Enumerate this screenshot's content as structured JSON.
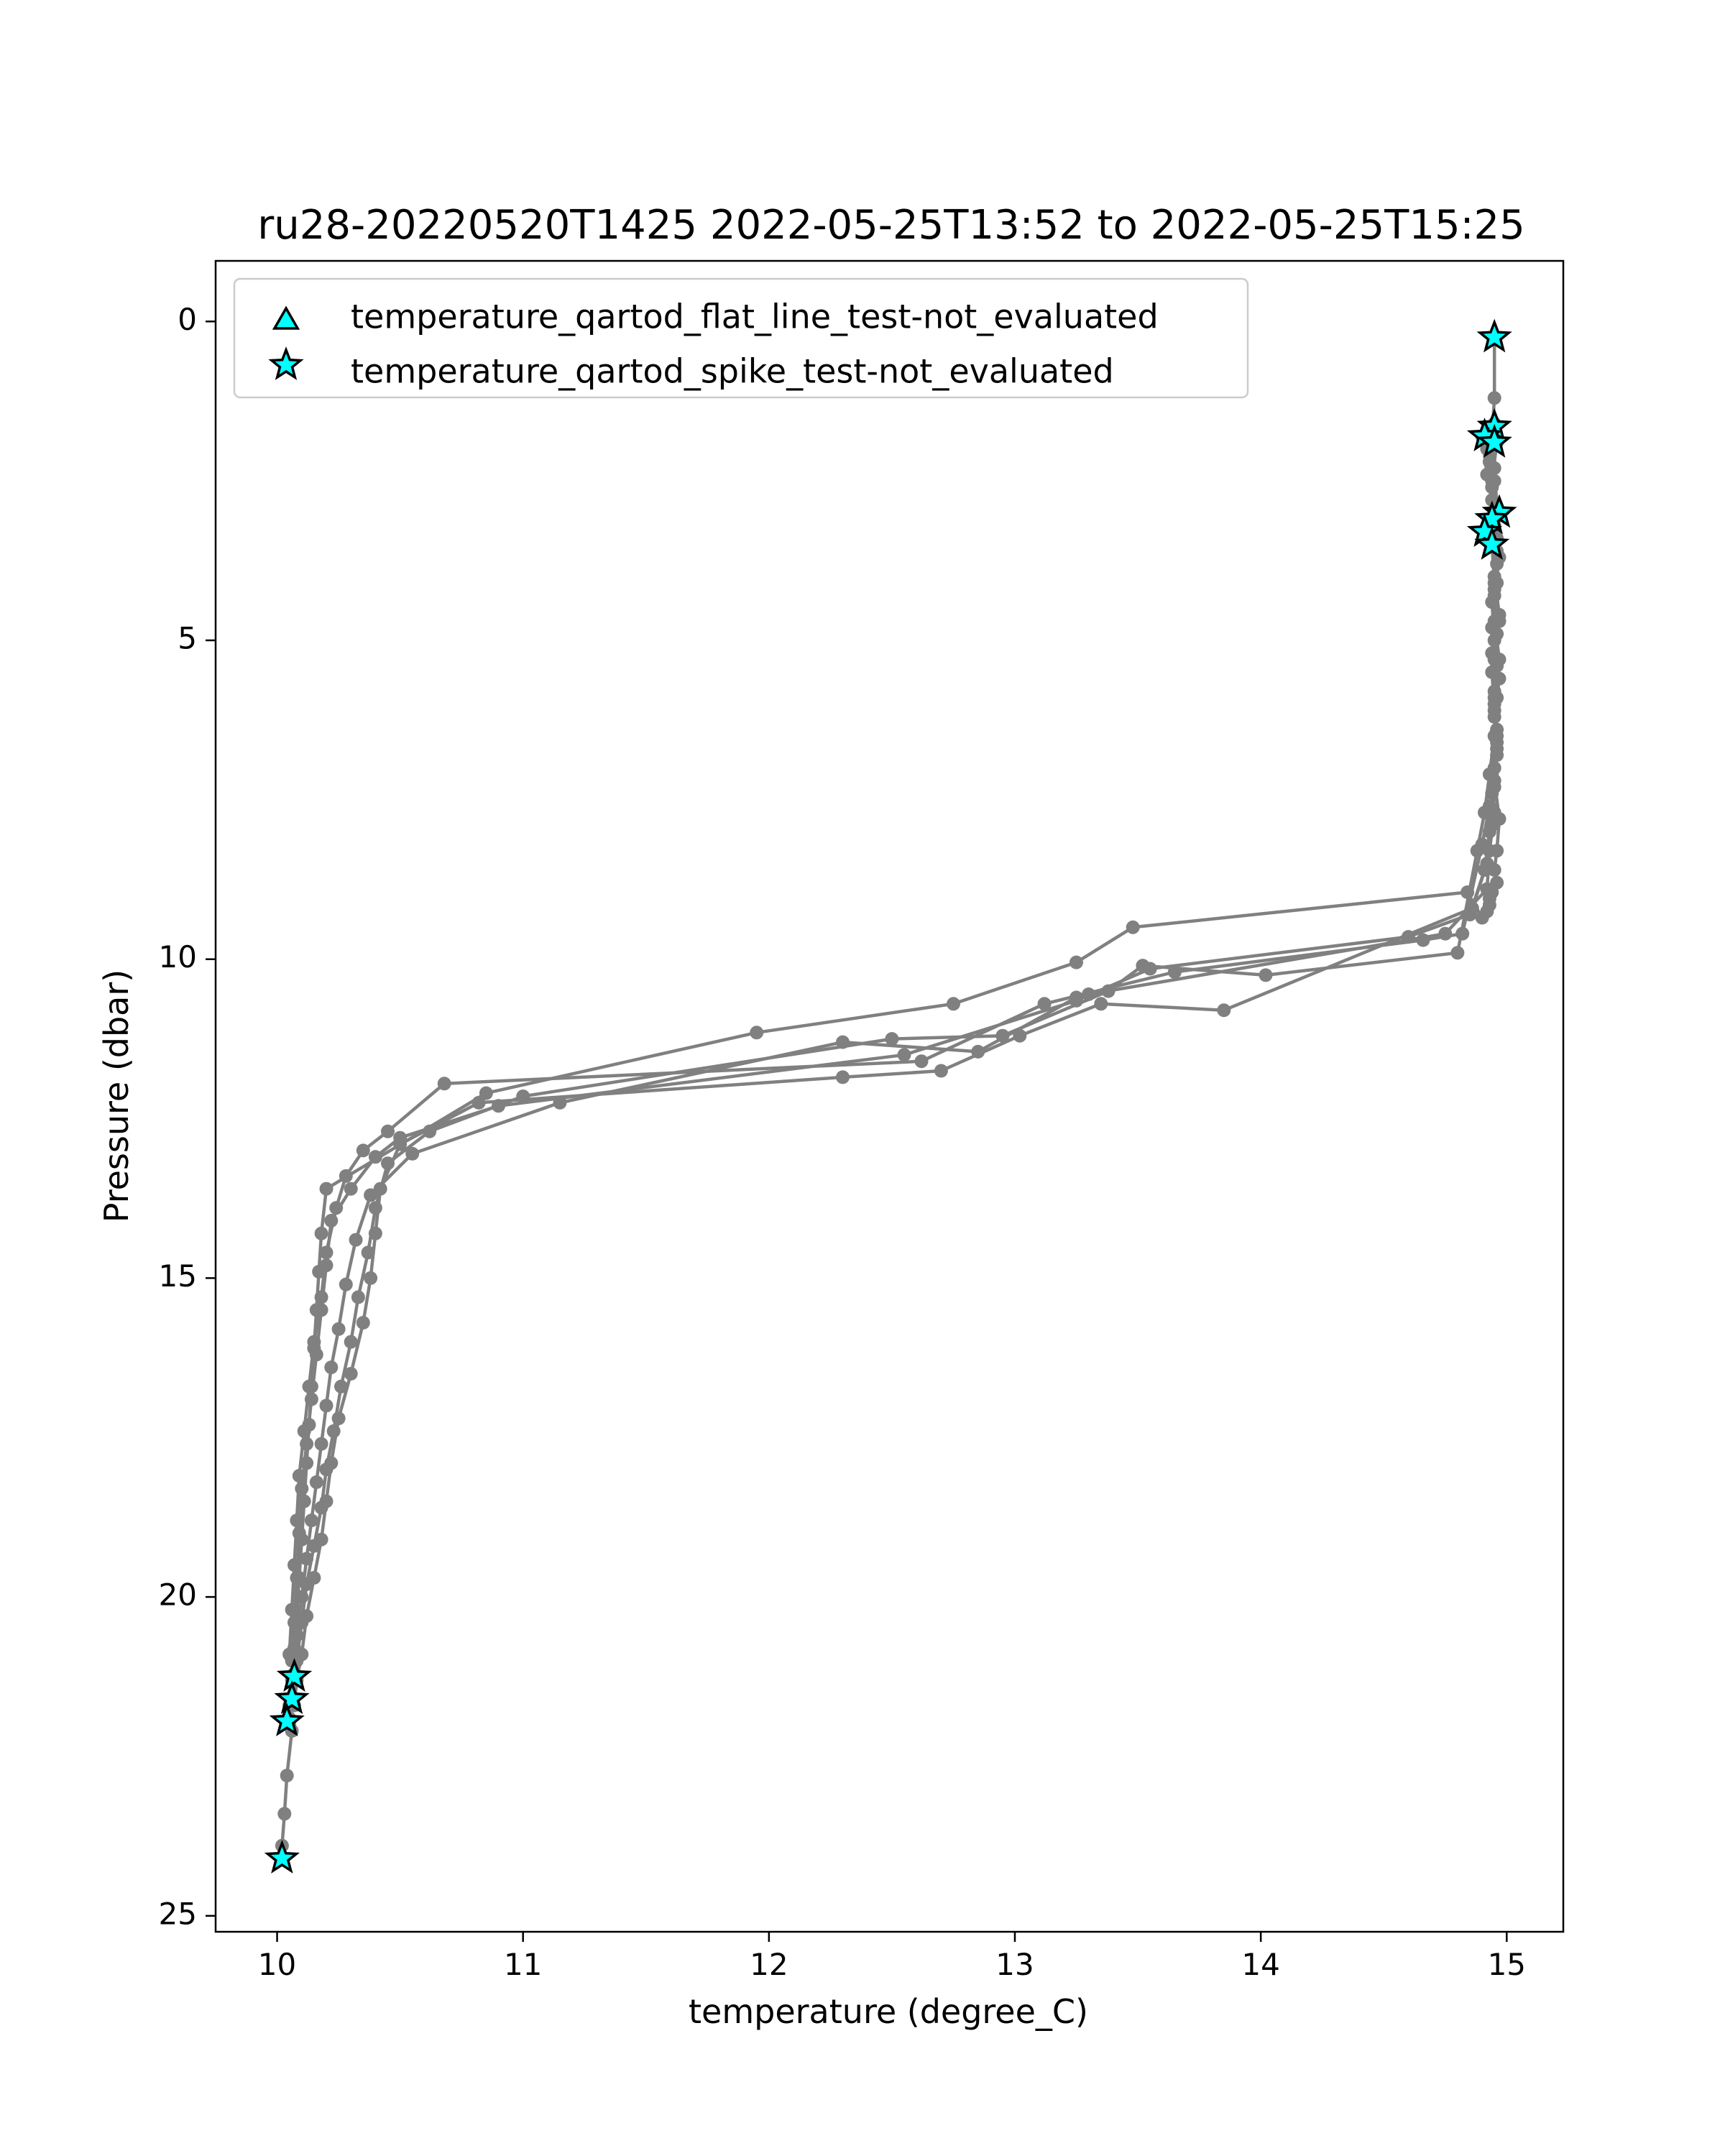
{
  "chart_data": {
    "type": "line",
    "title": "ru28-20220520T1425 2022-05-25T13:52 to 2022-05-25T15:25",
    "xlabel": "temperature (degree_C)",
    "ylabel": "Pressure (dbar)",
    "xlim": [
      9.75,
      15.23
    ],
    "ylim": [
      25.25,
      -0.95
    ],
    "y_inverted": true,
    "x_ticks": [
      10,
      11,
      12,
      13,
      14,
      15
    ],
    "y_ticks": [
      0,
      5,
      10,
      15,
      20,
      25
    ],
    "grid": false,
    "legend_position": "upper-left",
    "colors": {
      "profile": "#808080",
      "flag_fill": "#00ffff",
      "flag_edge": "#000000"
    },
    "legend": [
      {
        "marker": "triangle",
        "label": "temperature_qartod_flat_line_test-not_evaluated"
      },
      {
        "marker": "star",
        "label": "temperature_qartod_spike_test-not_evaluated"
      }
    ],
    "series": [
      {
        "x": [
          14.95,
          14.95,
          14.94,
          14.95,
          14.93,
          14.96,
          14.95,
          14.94,
          14.96,
          14.95,
          14.96,
          14.95,
          14.97,
          14.96,
          14.95,
          14.96,
          14.94,
          14.93,
          14.93,
          14.92,
          14.9,
          14.84,
          13.48,
          13.25,
          12.75,
          11.95,
          10.85,
          10.2,
          10.18,
          10.17,
          10.16,
          10.15,
          10.14,
          10.13,
          10.12,
          10.11,
          10.1,
          10.09,
          10.08,
          10.07,
          10.06,
          10.05,
          10.05,
          10.06,
          10.04,
          10.03,
          10.02,
          10.02
        ],
        "y": [
          0.25,
          1.2,
          1.8,
          2.5,
          3.1,
          3.6,
          4.2,
          4.8,
          5.4,
          6.0,
          6.6,
          7.2,
          7.8,
          8.3,
          8.6,
          8.8,
          8.95,
          9.05,
          9.15,
          9.25,
          9.35,
          8.95,
          9.5,
          10.05,
          10.7,
          11.15,
          12.1,
          13.6,
          14.3,
          14.9,
          15.5,
          16.1,
          16.7,
          17.3,
          17.9,
          18.5,
          19.1,
          19.7,
          20.3,
          20.8,
          21.3,
          21.7,
          22.0,
          22.1,
          22.8,
          23.4,
          23.9,
          24.1
        ]
      },
      {
        "x": [
          14.9,
          14.92,
          14.95,
          14.94,
          14.96,
          14.95,
          14.97,
          14.95,
          14.96,
          14.94,
          14.95,
          14.93,
          14.92,
          14.75,
          13.3,
          13.25,
          12.85,
          12.3,
          11.15,
          10.55,
          10.38,
          10.32,
          10.28,
          10.25,
          10.22,
          10.2,
          10.18,
          10.16,
          10.14,
          10.12,
          10.1,
          10.08,
          10.07,
          10.06,
          10.05
        ],
        "y": [
          1.8,
          2.4,
          3.0,
          3.5,
          4.1,
          4.7,
          5.3,
          5.9,
          6.5,
          7.1,
          7.7,
          8.3,
          8.9,
          9.6,
          10.55,
          10.6,
          11.45,
          11.3,
          12.25,
          13.05,
          13.7,
          14.4,
          15.1,
          15.8,
          16.4,
          17.0,
          17.6,
          18.2,
          18.8,
          19.4,
          20.0,
          20.6,
          21.2,
          21.6,
          21.9
        ]
      },
      {
        "x": [
          14.93,
          14.95,
          14.96,
          14.94,
          14.95,
          14.97,
          14.95,
          14.96,
          14.95,
          14.93,
          14.91,
          14.88,
          14.8,
          14.02,
          13.52,
          13.38,
          12.95,
          12.5,
          11.0,
          10.62,
          10.45,
          10.4,
          10.37,
          10.33,
          10.3,
          10.26,
          10.23,
          10.2,
          10.18,
          10.15,
          10.12,
          10.1,
          10.08,
          10.06
        ],
        "y": [
          1.7,
          2.3,
          2.9,
          3.5,
          4.1,
          4.7,
          5.3,
          5.9,
          6.5,
          7.1,
          7.7,
          8.3,
          9.9,
          10.25,
          10.1,
          10.5,
          11.2,
          11.25,
          12.15,
          12.7,
          13.2,
          13.9,
          14.6,
          15.3,
          16.0,
          16.7,
          17.4,
          18.0,
          18.6,
          19.2,
          19.8,
          20.4,
          21.0,
          21.6
        ]
      },
      {
        "x": [
          14.96,
          14.94,
          14.95,
          14.97,
          14.95,
          14.96,
          14.94,
          14.95,
          14.96,
          14.95,
          14.94,
          14.92,
          14.86,
          13.85,
          13.35,
          13.02,
          12.7,
          12.3,
          10.82,
          10.5,
          10.42,
          10.4,
          10.38,
          10.35,
          10.3,
          10.25,
          10.22,
          10.2,
          10.18,
          10.15,
          10.12,
          10.1,
          10.08,
          10.07
        ],
        "y": [
          1.9,
          2.5,
          3.1,
          3.7,
          4.3,
          4.9,
          5.5,
          6.1,
          6.7,
          7.3,
          7.9,
          8.5,
          9.2,
          10.8,
          10.7,
          11.2,
          11.75,
          11.85,
          12.25,
          12.9,
          13.6,
          14.3,
          15.0,
          15.7,
          16.5,
          17.2,
          17.9,
          18.5,
          19.1,
          19.7,
          20.3,
          20.9,
          21.3,
          21.7
        ]
      },
      {
        "x": [
          14.92,
          14.94,
          14.95,
          14.96,
          14.94,
          14.95,
          14.97,
          14.95,
          14.96,
          14.94,
          14.93,
          14.91,
          14.85,
          14.6,
          13.55,
          13.25,
          12.55,
          10.9,
          10.5,
          10.4,
          10.3,
          10.22,
          10.2,
          10.18,
          10.16,
          10.14,
          10.12,
          10.1,
          10.09,
          10.08,
          10.07,
          10.06
        ],
        "y": [
          2.0,
          2.6,
          3.2,
          3.8,
          4.4,
          5.0,
          5.6,
          6.2,
          6.8,
          7.4,
          8.0,
          8.6,
          9.3,
          9.65,
          10.15,
          10.65,
          11.5,
          12.3,
          12.8,
          13.1,
          13.6,
          14.1,
          14.8,
          15.5,
          16.2,
          16.9,
          17.6,
          18.3,
          19.0,
          19.7,
          20.4,
          21.0
        ]
      },
      {
        "x": [
          14.95,
          14.93,
          14.94,
          14.96,
          14.95,
          14.97,
          14.94,
          14.95,
          14.96,
          14.95,
          14.93,
          14.9,
          14.82,
          14.66,
          13.65,
          13.12,
          12.62,
          10.68,
          10.45,
          10.35,
          10.28,
          10.24,
          10.2,
          10.18,
          10.15,
          10.13,
          10.11,
          10.09,
          10.08,
          10.07,
          10.06,
          10.05
        ],
        "y": [
          1.6,
          2.2,
          2.8,
          3.4,
          4.0,
          4.6,
          5.2,
          5.8,
          6.4,
          7.0,
          7.6,
          8.2,
          9.6,
          9.7,
          10.2,
          10.7,
          11.6,
          11.95,
          12.7,
          13.0,
          13.4,
          13.9,
          14.6,
          15.3,
          16.0,
          16.7,
          17.4,
          18.1,
          18.8,
          19.5,
          20.2,
          20.9
        ]
      }
    ],
    "flagged_points": [
      {
        "test": "spike",
        "x": 14.95,
        "y": 0.25
      },
      {
        "test": "spike",
        "x": 14.95,
        "y": 1.65
      },
      {
        "test": "spike",
        "x": 14.91,
        "y": 1.8
      },
      {
        "test": "spike",
        "x": 14.95,
        "y": 1.9
      },
      {
        "test": "spike",
        "x": 14.97,
        "y": 3.0
      },
      {
        "test": "spike",
        "x": 14.94,
        "y": 3.1
      },
      {
        "test": "spike",
        "x": 14.91,
        "y": 3.3
      },
      {
        "test": "spike",
        "x": 14.94,
        "y": 3.5
      },
      {
        "test": "spike",
        "x": 10.07,
        "y": 21.25
      },
      {
        "test": "spike",
        "x": 10.06,
        "y": 21.6
      },
      {
        "test": "spike",
        "x": 10.04,
        "y": 21.95
      },
      {
        "test": "spike",
        "x": 10.02,
        "y": 24.1
      }
    ]
  }
}
